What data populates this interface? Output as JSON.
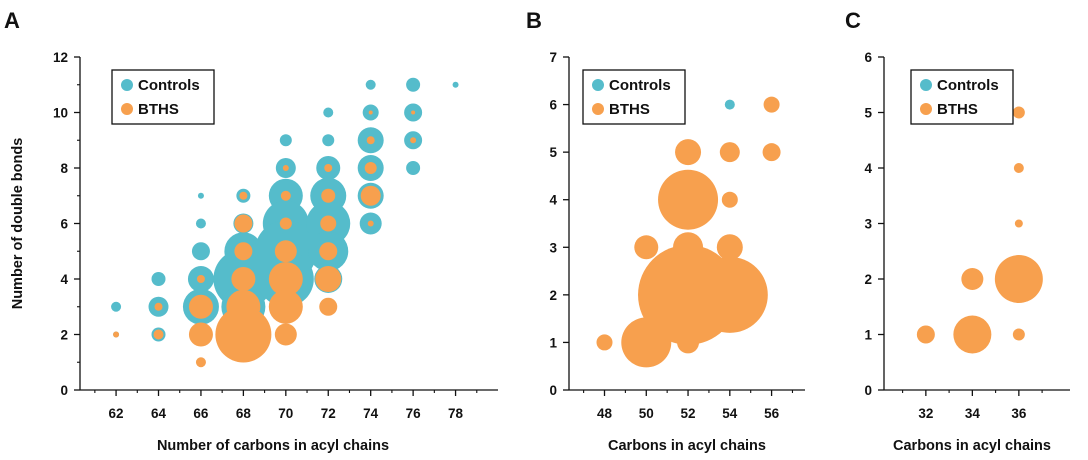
{
  "colors": {
    "controls": "#55bccb",
    "bths": "#f7a04e",
    "axis": "#111111"
  },
  "chart_data": [
    {
      "type": "scatter",
      "panel": "A",
      "xlabel": "Number of carbons in acyl chains",
      "ylabel": "Number of double bonds",
      "xticks": [
        62,
        64,
        66,
        68,
        70,
        72,
        74,
        76,
        78
      ],
      "yticks": [
        0,
        2,
        4,
        6,
        8,
        10,
        12
      ],
      "xlim": [
        60.3,
        80
      ],
      "ylim": [
        0,
        12
      ],
      "legend": {
        "position": "top-left",
        "entries": [
          "Controls",
          "BTHS"
        ]
      },
      "series": [
        {
          "name": "Controls",
          "points": [
            [
              62,
              3,
              5
            ],
            [
              62,
              2,
              3
            ],
            [
              64,
              4,
              7
            ],
            [
              64,
              3,
              10
            ],
            [
              64,
              2,
              7
            ],
            [
              66,
              7,
              3
            ],
            [
              66,
              6,
              5
            ],
            [
              66,
              5,
              9
            ],
            [
              66,
              4,
              13
            ],
            [
              66,
              3,
              18
            ],
            [
              66,
              2,
              11
            ],
            [
              66,
              1,
              2
            ],
            [
              68,
              7,
              7
            ],
            [
              68,
              6,
              10
            ],
            [
              68,
              5,
              19
            ],
            [
              68,
              4,
              30
            ],
            [
              68,
              3,
              22
            ],
            [
              68,
              2,
              11
            ],
            [
              70,
              9,
              6
            ],
            [
              70,
              8,
              10
            ],
            [
              70,
              7,
              17
            ],
            [
              70,
              6,
              23
            ],
            [
              70,
              5,
              31
            ],
            [
              70,
              4,
              28
            ],
            [
              70,
              3,
              13
            ],
            [
              70,
              2,
              6
            ],
            [
              72,
              10,
              5
            ],
            [
              72,
              9,
              6
            ],
            [
              72,
              8,
              12
            ],
            [
              72,
              7,
              18
            ],
            [
              72,
              6,
              22
            ],
            [
              72,
              5,
              20
            ],
            [
              72,
              4,
              14
            ],
            [
              72,
              3,
              7
            ],
            [
              74,
              11,
              5
            ],
            [
              74,
              10,
              8
            ],
            [
              74,
              9,
              13
            ],
            [
              74,
              8,
              13
            ],
            [
              74,
              7,
              13
            ],
            [
              74,
              6,
              11
            ],
            [
              76,
              11,
              7
            ],
            [
              76,
              10,
              9
            ],
            [
              76,
              9,
              9
            ],
            [
              76,
              8,
              7
            ],
            [
              78,
              11,
              3
            ]
          ]
        },
        {
          "name": "BTHS",
          "points": [
            [
              62,
              3,
              0
            ],
            [
              62,
              2,
              3
            ],
            [
              64,
              3,
              4
            ],
            [
              64,
              2,
              5
            ],
            [
              66,
              4,
              4
            ],
            [
              66,
              3,
              12
            ],
            [
              66,
              2,
              12
            ],
            [
              66,
              1,
              5
            ],
            [
              68,
              7,
              4
            ],
            [
              68,
              6,
              9
            ],
            [
              68,
              5,
              9
            ],
            [
              68,
              4,
              12
            ],
            [
              68,
              3,
              17
            ],
            [
              68,
              2,
              28
            ],
            [
              70,
              8,
              3
            ],
            [
              70,
              7,
              5
            ],
            [
              70,
              6,
              6
            ],
            [
              70,
              5,
              11
            ],
            [
              70,
              4,
              17
            ],
            [
              70,
              3,
              17
            ],
            [
              70,
              2,
              11
            ],
            [
              72,
              8,
              4
            ],
            [
              72,
              7,
              7
            ],
            [
              72,
              6,
              8
            ],
            [
              72,
              5,
              9
            ],
            [
              72,
              4,
              13
            ],
            [
              72,
              3,
              9
            ],
            [
              74,
              9,
              4
            ],
            [
              74,
              8,
              6
            ],
            [
              74,
              7,
              10
            ],
            [
              74,
              6,
              3
            ],
            [
              74,
              10,
              2
            ],
            [
              76,
              9,
              3
            ],
            [
              76,
              10,
              2
            ]
          ]
        }
      ]
    },
    {
      "type": "scatter",
      "panel": "B",
      "xlabel": "Carbons in acyl chains",
      "ylabel": "",
      "xticks": [
        48,
        50,
        52,
        54,
        56
      ],
      "yticks": [
        0,
        1,
        2,
        3,
        4,
        5,
        6,
        7
      ],
      "xlim": [
        46.3,
        57.6
      ],
      "ylim": [
        0,
        7
      ],
      "legend": {
        "position": "top-left",
        "entries": [
          "Controls",
          "BTHS"
        ]
      },
      "series": [
        {
          "name": "Controls",
          "points": [
            [
              50,
              1,
              4
            ],
            [
              52,
              5,
              3
            ],
            [
              52,
              4,
              8
            ],
            [
              52,
              3,
              2
            ],
            [
              52,
              2,
              5
            ],
            [
              54,
              6,
              5
            ],
            [
              54,
              5,
              6
            ],
            [
              54,
              4,
              5
            ],
            [
              54,
              3,
              3
            ],
            [
              54,
              2,
              6
            ],
            [
              56,
              5,
              4
            ],
            [
              56,
              6,
              3
            ]
          ]
        },
        {
          "name": "BTHS",
          "points": [
            [
              48,
              1,
              8
            ],
            [
              50,
              1,
              25
            ],
            [
              50,
              2,
              8
            ],
            [
              50,
              3,
              12
            ],
            [
              52,
              5,
              13
            ],
            [
              52,
              4,
              30
            ],
            [
              52,
              3,
              15
            ],
            [
              52,
              2,
              50
            ],
            [
              52,
              1,
              11
            ],
            [
              54,
              2,
              38
            ],
            [
              54,
              3,
              13
            ],
            [
              54,
              4,
              8
            ],
            [
              54,
              5,
              10
            ],
            [
              56,
              5,
              9
            ],
            [
              56,
              6,
              8
            ]
          ]
        }
      ]
    },
    {
      "type": "scatter",
      "panel": "C",
      "xlabel": "Carbons in acyl chains",
      "ylabel": "",
      "xticks": [
        32,
        34,
        36
      ],
      "yticks": [
        0,
        1,
        2,
        3,
        4,
        5,
        6
      ],
      "xlim": [
        30.2,
        38.2
      ],
      "ylim": [
        0,
        6
      ],
      "legend": {
        "position": "top-left",
        "entries": [
          "Controls",
          "BTHS"
        ]
      },
      "series": [
        {
          "name": "Controls",
          "points": [
            [
              34,
              2,
              5
            ],
            [
              36,
              2,
              4
            ],
            [
              36,
              3,
              3
            ],
            [
              36,
              5,
              2
            ]
          ]
        },
        {
          "name": "BTHS",
          "points": [
            [
              32,
              1,
              9
            ],
            [
              34,
              1,
              19
            ],
            [
              34,
              2,
              11
            ],
            [
              36,
              2,
              24
            ],
            [
              36,
              1,
              6
            ],
            [
              36,
              3,
              4
            ],
            [
              36,
              4,
              5
            ],
            [
              36,
              5,
              6
            ]
          ]
        }
      ]
    }
  ]
}
